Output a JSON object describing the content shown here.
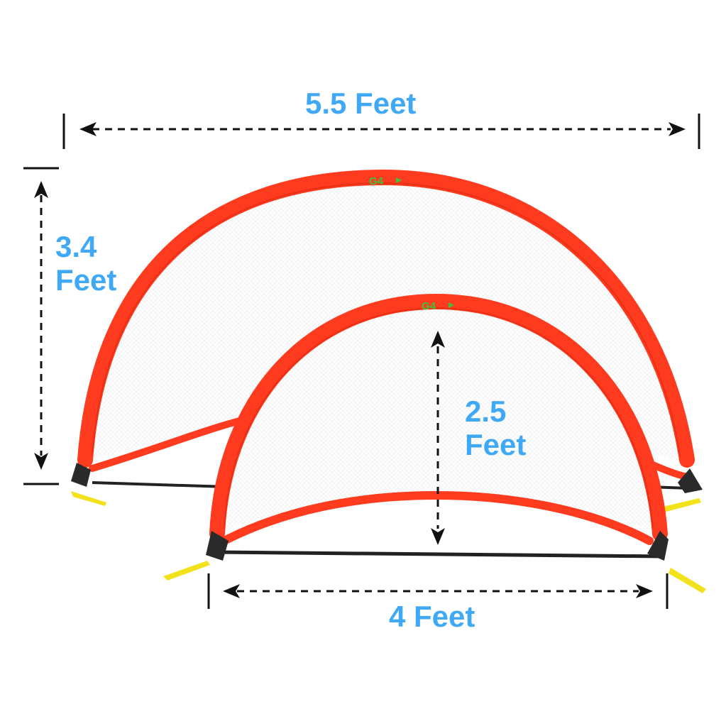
{
  "dimensions": {
    "large_width": "5.5 Feet",
    "large_height_value": "3.4",
    "large_height_unit": "Feet",
    "small_height_value": "2.5",
    "small_height_unit": "Feet",
    "small_width": "4 Feet"
  },
  "logos": {
    "large_goal": "G4",
    "small_goal": "G4"
  },
  "colors": {
    "label_blue": "#3fa9f5",
    "frame_red": "#ff3b1f",
    "logo_green": "#3cc33c",
    "stake_yellow": "#f2e21c",
    "arrow_black": "#111111"
  }
}
